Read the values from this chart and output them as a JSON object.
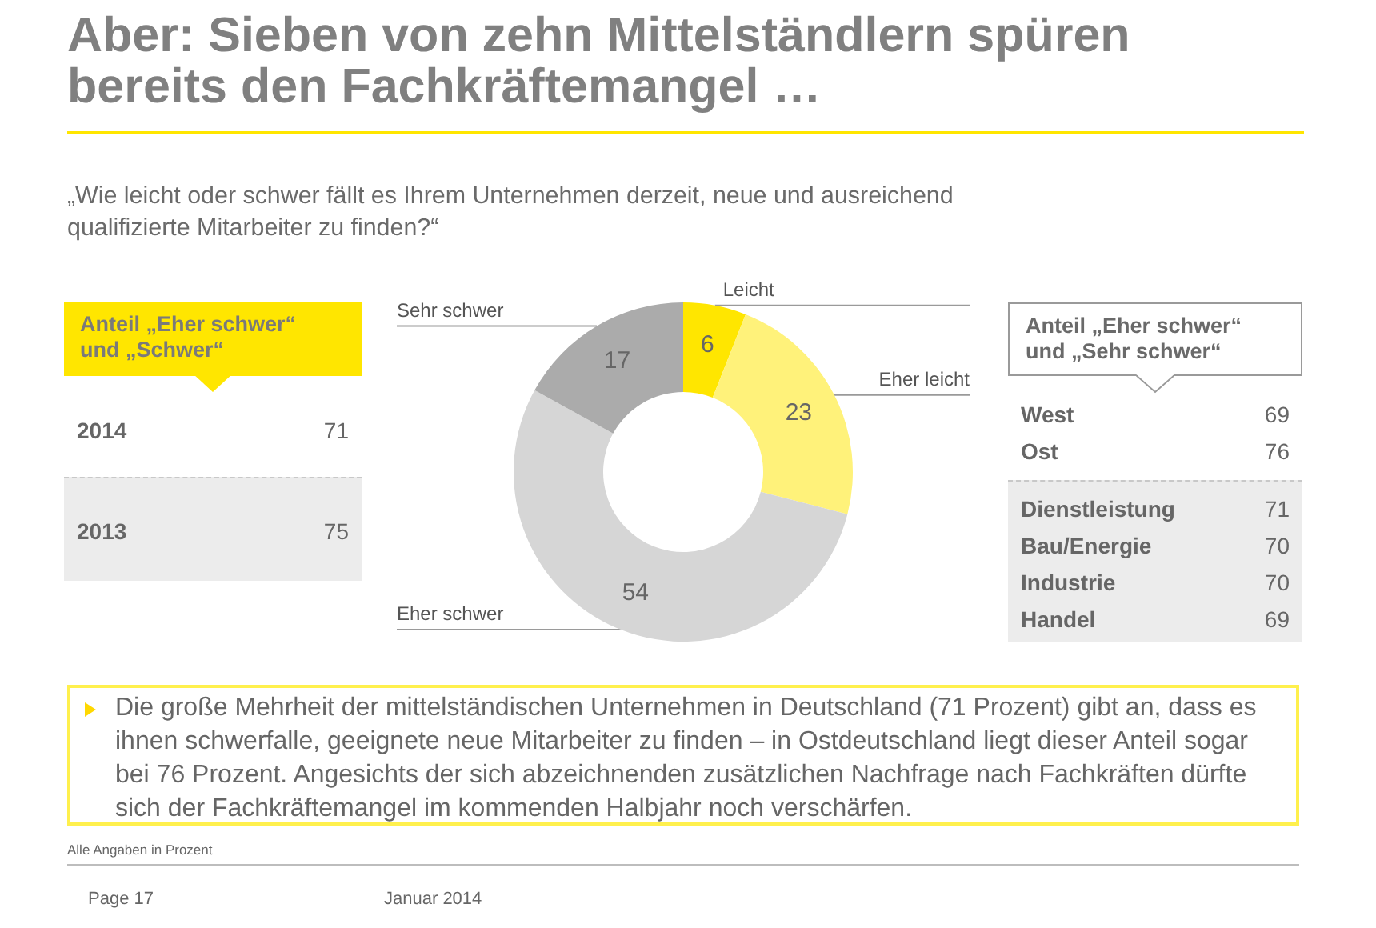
{
  "chart_data": [
    {
      "type": "other",
      "title": "Anteil „Eher schwer“ und „Schwer“",
      "categories": [
        "2014"
      ],
      "values": [
        71
      ],
      "data_labels": true
    },
    {
      "type": "other",
      "categories": [
        "2013"
      ],
      "values": [
        75
      ],
      "data_labels": true
    },
    {
      "type": "donut",
      "title": "Aber: Sieben von zehn Mittelständlern spüren bereits den Fachkräftemangel …",
      "subtitle": "„Wie leicht oder schwer fällt es Ihrem Unternehmen derzeit, neue und ausreichend qualifizierte Mitarbeiter zu finden?“",
      "categories": [
        "Leicht",
        "Eher leicht",
        "Eher schwer",
        "Sehr schwer"
      ],
      "values": [
        6,
        23,
        54,
        17
      ],
      "colors": [
        "#ffe600",
        "#fff27a",
        "#d6d6d6",
        "#ababab"
      ],
      "data_labels": true,
      "annotations": [
        "Die große Mehrheit der mittelständischen Unternehmen in Deutschland (71 Prozent) gibt an, dass es ihnen schwerfalle, geeignete neue Mitarbeiter zu finden – in Ostdeutschland liegt dieser Anteil sogar bei 76 Prozent. Angesichts der sich abzeichnenden zusätzlichen Nachfrage nach Fachkräften dürfte sich der Fachkräftemangel im kommenden Halbjahr noch verschärfen.",
        "Alle Angaben in Prozent",
        "Page 17",
        "Januar 2014"
      ]
    },
    {
      "type": "other",
      "title": "Anteil „Eher schwer“ und „Sehr schwer“",
      "categories": [
        "West",
        "Ost"
      ],
      "values": [
        69,
        76
      ],
      "data_labels": true
    },
    {
      "type": "other",
      "categories": [
        "Dienstleistung",
        "Bau/Energie",
        "Industrie",
        "Handel"
      ],
      "values": [
        71,
        70,
        70,
        69
      ],
      "data_labels": true
    }
  ]
}
